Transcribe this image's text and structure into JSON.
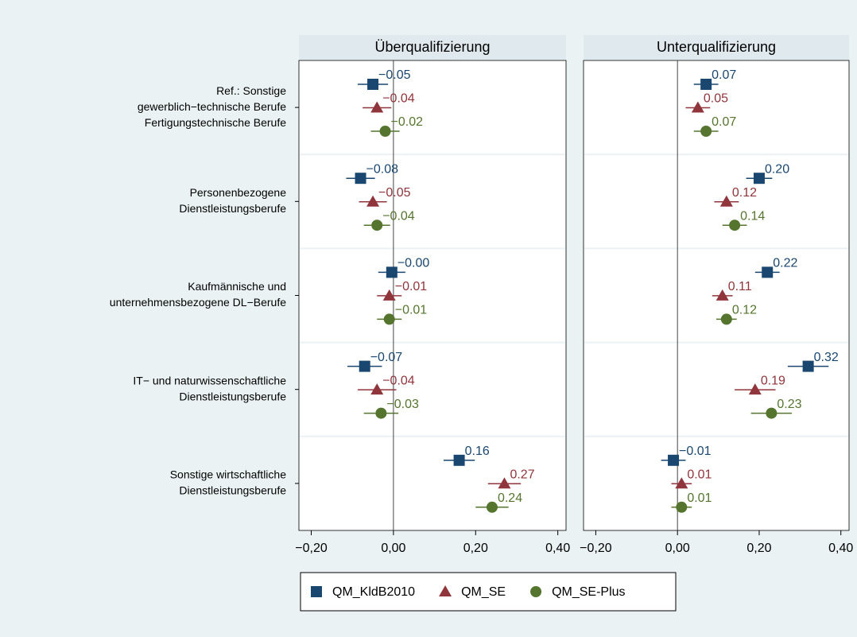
{
  "chart_data": {
    "type": "dot",
    "categories": [
      [
        "Ref.: Sonstige",
        "gewerblich−technische Berufe",
        "Fertigungstechnische Berufe"
      ],
      [
        "Personenbezogene",
        "Dienstleistungsberufe"
      ],
      [
        "Kaufmännische und",
        "unternehmensbezogene DL−Berufe"
      ],
      [
        "IT− und naturwissenschaftliche",
        "Dienstleistungsberufe"
      ],
      [
        "Sonstige wirtschaftliche",
        "Dienstleistungsberufe"
      ]
    ],
    "series": [
      {
        "name": "QM_KldB2010",
        "color": "#1a476f",
        "marker": "square"
      },
      {
        "name": "QM_SE",
        "color": "#90353b",
        "marker": "triangle"
      },
      {
        "name": "QM_SE-Plus",
        "color": "#55752f",
        "marker": "circle"
      }
    ],
    "xlim": [
      -0.23,
      0.42
    ],
    "xticks": [
      {
        "value": -0.2,
        "label": "−0,20"
      },
      {
        "value": 0,
        "label": "0,00"
      },
      {
        "value": 0.2,
        "label": "0,20"
      },
      {
        "value": 0.4,
        "label": "0,40"
      }
    ],
    "panels": [
      {
        "title": "Überqualifizierung",
        "series": [
          {
            "values": [
              -0.05,
              -0.08,
              -0.004,
              -0.07,
              0.16
            ],
            "value_labels": [
              "−0.05",
              "−0.08",
              "−0.00",
              "−0.07",
              "0.16"
            ],
            "errors": [
              0.037,
              0.035,
              0.033,
              0.042,
              0.038
            ]
          },
          {
            "values": [
              -0.04,
              -0.05,
              -0.01,
              -0.04,
              0.27
            ],
            "value_labels": [
              "−0.04",
              "−0.05",
              "−0.01",
              "−0.04",
              "0.27"
            ],
            "errors": [
              0.035,
              0.034,
              0.03,
              0.047,
              0.04
            ]
          },
          {
            "values": [
              -0.02,
              -0.04,
              -0.01,
              -0.03,
              0.24
            ],
            "value_labels": [
              "−0.02",
              "−0.04",
              "−0.01",
              "−0.03",
              "0.24"
            ],
            "errors": [
              0.035,
              0.032,
              0.03,
              0.042,
              0.04
            ]
          }
        ]
      },
      {
        "title": "Unterqualifizierung",
        "series": [
          {
            "values": [
              0.07,
              0.2,
              0.22,
              0.32,
              -0.01
            ],
            "value_labels": [
              "0.07",
              "0.20",
              "0.22",
              "0.32",
              "−0.01"
            ],
            "errors": [
              0.03,
              0.032,
              0.03,
              0.05,
              0.03
            ]
          },
          {
            "values": [
              0.05,
              0.12,
              0.11,
              0.19,
              0.01
            ],
            "value_labels": [
              "0.05",
              "0.12",
              "0.11",
              "0.19",
              "0.01"
            ],
            "errors": [
              0.03,
              0.03,
              0.025,
              0.05,
              0.025
            ]
          },
          {
            "values": [
              0.07,
              0.14,
              0.12,
              0.23,
              0.01
            ],
            "value_labels": [
              "0.07",
              "0.14",
              "0.12",
              "0.23",
              "0.01"
            ],
            "errors": [
              0.03,
              0.03,
              0.025,
              0.05,
              0.025
            ]
          }
        ]
      }
    ]
  }
}
